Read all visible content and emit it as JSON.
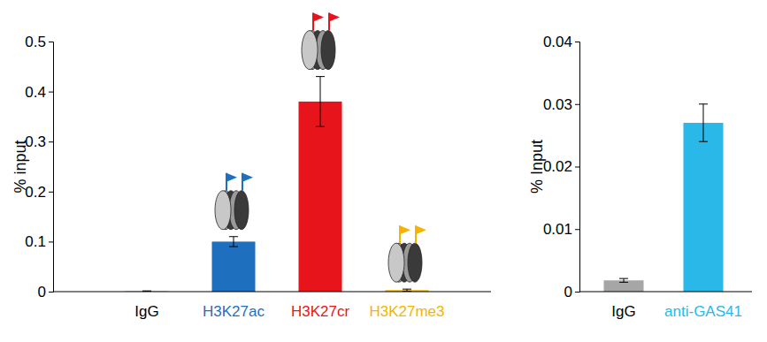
{
  "chart_data": [
    {
      "type": "bar",
      "categories": [
        "IgG",
        "H3K27ac",
        "H3K27cr",
        "H3K27me3"
      ],
      "values": [
        0.001,
        0.1,
        0.38,
        0.003
      ],
      "errors": [
        0.0005,
        0.01,
        0.05,
        0.002
      ],
      "colors": [
        "#a6a6a6",
        "#1f6fbf",
        "#e8141c",
        "#f5b400"
      ],
      "y_label": "% input",
      "ylim": [
        0,
        0.5
      ],
      "yticks": [
        0,
        0.1,
        0.2,
        0.3,
        0.4,
        0.5
      ],
      "grid": false
    },
    {
      "type": "bar",
      "categories": [
        "IgG",
        "anti-GAS41"
      ],
      "values": [
        0.0018,
        0.027
      ],
      "errors": [
        0.0003,
        0.003
      ],
      "colors": [
        "#a6a6a6",
        "#29b8e8"
      ],
      "y_label": "% Input",
      "ylim": [
        0,
        0.04
      ],
      "yticks": [
        0,
        0.01,
        0.02,
        0.03,
        0.04
      ],
      "grid": false
    }
  ]
}
